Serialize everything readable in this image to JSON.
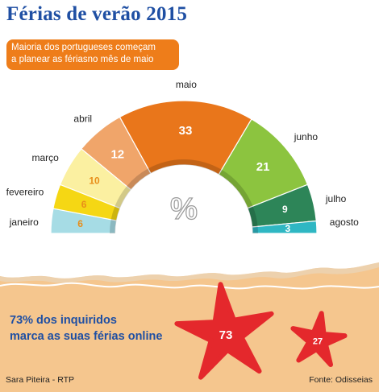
{
  "title": "Férias de verão 2015",
  "callout": {
    "line1": "Maioria dos portugueses começam",
    "line2": "a planear as fériasno mês de maio"
  },
  "chart_data": {
    "type": "pie",
    "shape": "semicircle",
    "unit_label": "%",
    "categories": [
      "janeiro",
      "fevereiro",
      "março",
      "abril",
      "maio",
      "junho",
      "julho",
      "agosto"
    ],
    "values": [
      6,
      6,
      10,
      12,
      33,
      21,
      9,
      3
    ],
    "colors": [
      "#a6dce5",
      "#f5d714",
      "#fbf0a1",
      "#f0a56a",
      "#e9761b",
      "#8cc43f",
      "#2d8558",
      "#2fb7c3"
    ],
    "value_colors": [
      "#e88e1a",
      "#e88e1a",
      "#e88e1a",
      "#ffffff",
      "#ffffff",
      "#ffffff",
      "#ffffff",
      "#ffffff"
    ]
  },
  "survey": {
    "line1": "73% dos inquiridos",
    "line2": "marca as suas férias online"
  },
  "starfish": [
    {
      "value": "73",
      "color": "#e4282c"
    },
    {
      "value": "27",
      "color": "#e4282c"
    }
  ],
  "credits": {
    "author": "Sara Piteira - RTP",
    "source": "Fonte: Odisseias"
  }
}
